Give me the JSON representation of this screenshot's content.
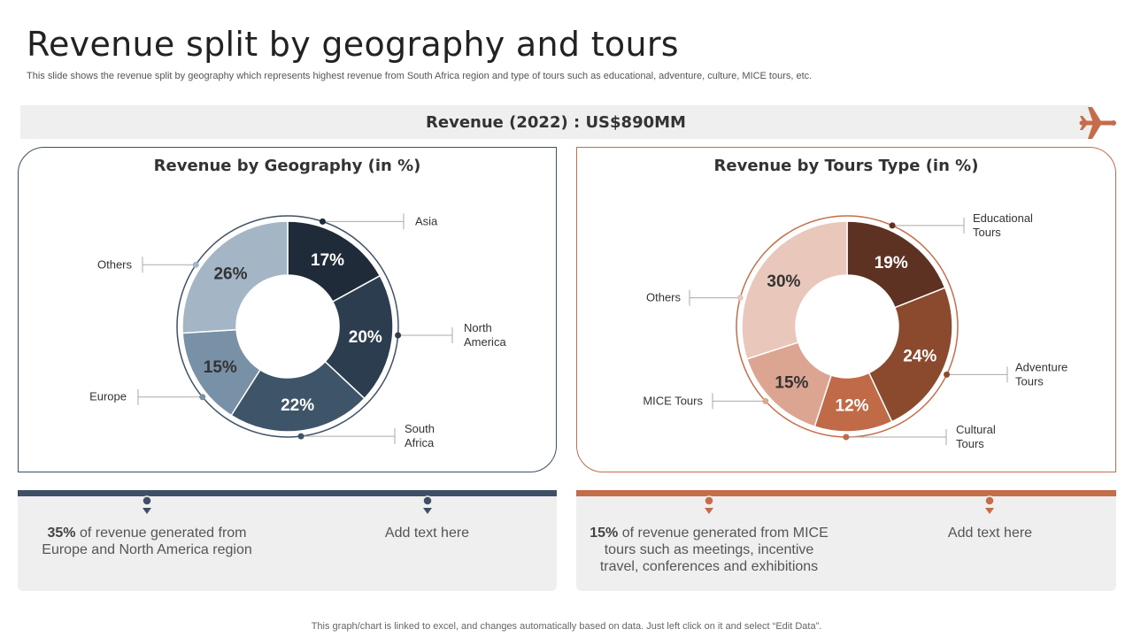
{
  "header": {
    "title": "Revenue split by geography and tours",
    "subtitle": "This slide shows the revenue split by geography which represents highest revenue from South Africa region and type of tours such as educational, adventure, culture, MICE tours, etc."
  },
  "revenue_bar": {
    "label": "Revenue (2022) : US$890MM",
    "icon": "airplane-icon"
  },
  "chart_data": [
    {
      "type": "pie",
      "title": "Revenue by Geography (in %)",
      "categories": [
        "Asia",
        "North America",
        "South Africa",
        "Europe",
        "Others"
      ],
      "values": [
        17,
        20,
        22,
        15,
        26
      ],
      "labels": [
        "17%",
        "20%",
        "22%",
        "15%",
        "26%"
      ],
      "colors": [
        "#1f2b38",
        "#2c3d4f",
        "#3e5468",
        "#7991a6",
        "#a4b5c5"
      ],
      "label_colors": [
        "#ffffff",
        "#ffffff",
        "#ffffff",
        "#333333",
        "#333333"
      ],
      "callouts": [
        "Asia",
        "North\nAmerica",
        "South\nAfrica",
        "Europe",
        "Others"
      ]
    },
    {
      "type": "pie",
      "title": "Revenue by Tours Type (in %)",
      "categories": [
        "Educational Tours",
        "Adventure Tours",
        "Cultural Tours",
        "MICE Tours",
        "Others"
      ],
      "values": [
        19,
        24,
        12,
        15,
        30
      ],
      "labels": [
        "19%",
        "24%",
        "12%",
        "15%",
        "30%"
      ],
      "colors": [
        "#5e3222",
        "#8b4a2e",
        "#c06a47",
        "#dca592",
        "#eac7bb"
      ],
      "label_colors": [
        "#ffffff",
        "#ffffff",
        "#ffffff",
        "#333333",
        "#333333"
      ],
      "callouts": [
        "Educational\nTours",
        "Adventure\nTours",
        "Cultural\nTours",
        "MICE Tours",
        "Others"
      ]
    }
  ],
  "info": {
    "geo": {
      "left_bold": "35%",
      "left_text": " of revenue  generated from Europe and North America region",
      "right_text": "Add text here"
    },
    "tour": {
      "left_bold": "15%",
      "left_text": " of revenue  generated from MICE tours  such as meetings,  incentive travel,  conferences and exhibitions",
      "right_text": "Add text here"
    }
  },
  "footer": "This graph/chart is linked to excel,  and changes automatically based on data. Just left click on it and select “Edit Data”."
}
